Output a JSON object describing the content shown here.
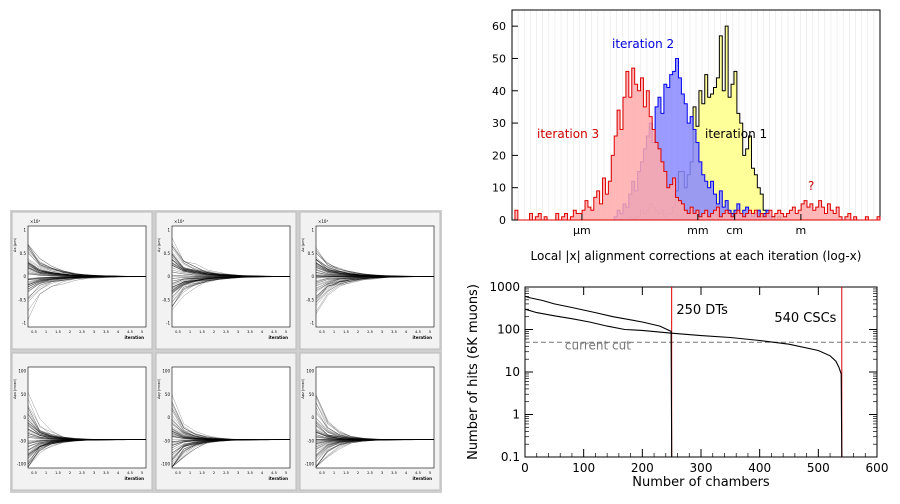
{
  "convergence_grid": {
    "rows": 2,
    "cols": 3,
    "x_label": "iteration",
    "x_ticks": [
      "0.5",
      "1",
      "1.5",
      "2",
      "2.5",
      "3",
      "3.5",
      "4",
      "4.5",
      "5"
    ],
    "top_exponent_labels": [
      "×10³",
      "×10³",
      "×10³"
    ],
    "y_axis_titles": [
      "Δx (μm)",
      "Δy (μm)",
      "Δz (μm)",
      "Δφx (mrad)",
      "Δφy (mrad)",
      "Δφz (mrad)"
    ],
    "y_ticks_top": [
      "-1",
      "-0.5",
      "0",
      "0.5",
      "1"
    ],
    "y_ticks_bottom": [
      "-100",
      "-50",
      "0",
      "50",
      "100"
    ]
  },
  "chart_data": [
    {
      "type": "histogram",
      "xlabel": "Local |x| alignment corrections at each iteration (log-x)",
      "ylabel": "",
      "ylim": [
        0,
        65
      ],
      "y_ticks": [
        0,
        10,
        20,
        30,
        40,
        50,
        60
      ],
      "x_scale": "log",
      "x_ticks": [
        "μm",
        "mm",
        "cm",
        "m"
      ],
      "grid": "vertical",
      "legend": "none",
      "annotations": [
        "iteration 1",
        "iteration 2",
        "iteration 3",
        "?"
      ],
      "series": [
        {
          "name": "iteration 1",
          "fill": "#ffff99",
          "line": "#000000",
          "values": [
            0,
            0,
            0,
            0,
            0,
            0,
            0,
            0,
            0,
            0,
            0,
            0,
            0,
            0,
            0,
            0,
            0,
            0,
            0,
            0,
            0,
            0,
            0,
            0,
            0,
            0,
            0,
            0,
            0,
            0,
            0,
            0,
            0,
            0,
            0,
            0,
            0,
            0,
            0,
            0,
            1,
            0,
            1,
            1,
            3,
            2,
            3,
            5,
            4,
            3,
            2,
            3,
            1,
            2,
            2,
            4,
            9,
            15,
            15,
            10,
            14,
            18,
            35,
            29,
            40,
            36,
            45,
            38,
            39,
            41,
            44,
            57,
            40,
            60,
            38,
            42,
            46,
            33,
            30,
            20,
            22,
            26,
            16,
            14,
            10,
            8,
            3,
            2,
            1,
            1,
            0,
            1,
            0,
            0,
            0,
            0,
            0,
            0,
            0,
            0,
            0,
            0,
            0,
            0,
            0,
            0,
            0,
            0,
            0,
            0,
            0,
            0,
            0,
            0,
            0,
            0,
            0,
            0,
            0,
            0,
            0,
            0,
            0,
            0,
            0,
            0
          ]
        },
        {
          "name": "iteration 2",
          "fill": "#8888ff",
          "line": "#0000ee",
          "values": [
            0,
            0,
            0,
            0,
            0,
            0,
            0,
            0,
            0,
            0,
            0,
            0,
            0,
            0,
            0,
            0,
            0,
            0,
            0,
            0,
            0,
            0,
            0,
            0,
            0,
            0,
            0,
            0,
            0,
            0,
            0,
            0,
            0,
            0,
            0,
            1,
            3,
            2,
            5,
            4,
            8,
            12,
            9,
            15,
            18,
            22,
            26,
            30,
            24,
            35,
            38,
            33,
            42,
            41,
            45,
            46,
            50,
            44,
            39,
            36,
            30,
            32,
            28,
            24,
            18,
            14,
            12,
            10,
            12,
            8,
            5,
            9,
            4,
            6,
            3,
            2,
            3,
            5,
            2,
            3,
            4,
            2,
            1,
            2,
            3,
            1,
            2,
            3,
            1,
            0,
            0,
            0,
            0,
            0,
            0,
            0,
            0,
            0,
            0,
            0,
            0,
            0,
            0,
            0,
            0,
            0,
            0,
            0,
            0,
            0,
            0,
            0,
            0,
            0,
            0,
            0,
            0,
            0,
            0,
            0,
            0,
            0,
            0,
            0,
            0,
            0
          ]
        },
        {
          "name": "iteration 3",
          "fill": "#ffaaaa",
          "line": "#dd0000",
          "values": [
            0,
            3,
            0,
            0,
            0,
            0,
            2,
            0,
            1,
            2,
            0,
            1,
            0,
            0,
            0,
            2,
            0,
            1,
            2,
            0,
            1,
            3,
            2,
            2,
            3,
            6,
            4,
            3,
            7,
            9,
            5,
            13,
            8,
            12,
            20,
            26,
            34,
            28,
            38,
            46,
            38,
            47,
            42,
            40,
            44,
            35,
            40,
            32,
            28,
            24,
            22,
            18,
            15,
            10,
            11,
            13,
            7,
            6,
            5,
            3,
            2,
            4,
            2,
            3,
            1,
            2,
            3,
            1,
            2,
            3,
            4,
            1,
            2,
            3,
            2,
            1,
            2,
            3,
            2,
            1,
            2,
            3,
            2,
            3,
            1,
            2,
            1,
            2,
            3,
            1,
            2,
            3,
            2,
            1,
            2,
            3,
            4,
            2,
            3,
            5,
            6,
            4,
            5,
            3,
            4,
            6,
            4,
            2,
            5,
            3,
            2,
            4,
            1,
            0,
            1,
            2,
            0,
            1,
            0,
            0,
            0,
            1,
            0,
            0,
            0,
            1
          ]
        }
      ]
    },
    {
      "type": "line",
      "xlabel": "Number of chambers",
      "ylabel": "Number of hits (6K muons)",
      "xlim": [
        0,
        600
      ],
      "ylim": [
        0.1,
        1000
      ],
      "y_scale": "log",
      "x_ticks": [
        0,
        100,
        200,
        300,
        400,
        500,
        600
      ],
      "y_ticks": [
        "0.1",
        "1",
        "10",
        "100",
        "1000"
      ],
      "grid": "none",
      "legend": "none",
      "annotations": [
        "250 DTs",
        "540 CSCs",
        "current cut"
      ],
      "cut_level": 50,
      "vertical_markers": [
        250,
        540
      ],
      "series": [
        {
          "name": "250 DTs",
          "x": [
            0,
            10,
            30,
            50,
            80,
            120,
            150,
            200,
            230,
            249,
            250
          ],
          "y": [
            600,
            550,
            480,
            400,
            330,
            250,
            200,
            150,
            120,
            90,
            0.1
          ]
        },
        {
          "name": "540 CSCs",
          "x": [
            0,
            20,
            50,
            80,
            110,
            140,
            170,
            200,
            250,
            300,
            350,
            400,
            450,
            500,
            520,
            530,
            535,
            539,
            540
          ],
          "y": [
            300,
            250,
            210,
            180,
            150,
            120,
            100,
            95,
            82,
            72,
            65,
            55,
            45,
            32,
            24,
            18,
            13,
            9,
            0.1
          ]
        }
      ]
    }
  ]
}
